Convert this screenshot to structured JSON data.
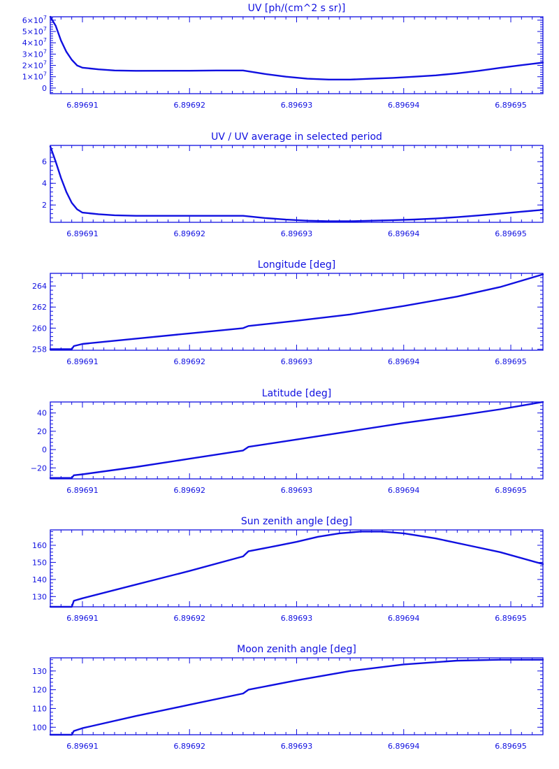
{
  "colors": {
    "line": "#1010e0",
    "background": "#ffffff"
  },
  "chart_data": [
    {
      "type": "line",
      "title": "UV [ph/(cm^2 s sr)]",
      "xlim": [
        6.896907,
        6.896953
      ],
      "ylim": [
        -5000000,
        63000000
      ],
      "x_ticks": [
        6.89691,
        6.89692,
        6.89693,
        6.89694,
        6.89695
      ],
      "x_tick_labels": [
        "6.89691",
        "6.89692",
        "6.89693",
        "6.89694",
        "6.89695"
      ],
      "y_ticks": [
        0,
        10000000,
        20000000,
        30000000,
        40000000,
        50000000,
        60000000
      ],
      "y_tick_labels": [
        {
          "base": "0",
          "exp": ""
        },
        {
          "base": "1×10",
          "exp": "7"
        },
        {
          "base": "2×10",
          "exp": "7"
        },
        {
          "base": "3×10",
          "exp": "7"
        },
        {
          "base": "4×10",
          "exp": "7"
        },
        {
          "base": "5×10",
          "exp": "7"
        },
        {
          "base": "6×10",
          "exp": "7"
        }
      ],
      "series": [
        {
          "x": [
            6.896907,
            6.8969075,
            6.896908,
            6.8969085,
            6.896909,
            6.8969095,
            6.89691,
            6.8969115,
            6.896913,
            6.896915,
            6.89692,
            6.8969225,
            6.896925,
            6.896927,
            6.896929,
            6.896931,
            6.896933,
            6.896935,
            6.896937,
            6.896939,
            6.896941,
            6.896943,
            6.896945,
            6.896947,
            6.896949,
            6.896951,
            6.896953
          ],
          "y": [
            63000000,
            55000000,
            42000000,
            32000000,
            25000000,
            20000000,
            18000000,
            16500000,
            15500000,
            15200000,
            15300000,
            15500000,
            15500000,
            12500000,
            10000000,
            8200000,
            7500000,
            7500000,
            8200000,
            9000000,
            10000000,
            11200000,
            13000000,
            15200000,
            17800000,
            20200000,
            22500000
          ]
        }
      ]
    },
    {
      "type": "line",
      "title": "UV / UV average in selected period",
      "xlim": [
        6.896907,
        6.896953
      ],
      "ylim": [
        0.4,
        7.5
      ],
      "x_ticks": [
        6.89691,
        6.89692,
        6.89693,
        6.89694,
        6.89695
      ],
      "x_tick_labels": [
        "6.89691",
        "6.89692",
        "6.89693",
        "6.89694",
        "6.89695"
      ],
      "y_ticks": [
        2,
        4,
        6
      ],
      "y_tick_labels": [
        {
          "base": "2",
          "exp": ""
        },
        {
          "base": "4",
          "exp": ""
        },
        {
          "base": "6",
          "exp": ""
        }
      ],
      "series": [
        {
          "x": [
            6.896907,
            6.8969075,
            6.896908,
            6.8969085,
            6.896909,
            6.8969095,
            6.89691,
            6.8969115,
            6.896913,
            6.896915,
            6.89692,
            6.8969225,
            6.896925,
            6.896927,
            6.896929,
            6.896931,
            6.896933,
            6.896935,
            6.896937,
            6.896939,
            6.896941,
            6.896943,
            6.896945,
            6.896947,
            6.896949,
            6.896951,
            6.896953
          ],
          "y": [
            7.4,
            6.0,
            4.5,
            3.2,
            2.2,
            1.6,
            1.3,
            1.15,
            1.05,
            1.0,
            1.0,
            1.0,
            1.0,
            0.8,
            0.65,
            0.55,
            0.5,
            0.5,
            0.55,
            0.6,
            0.66,
            0.75,
            0.88,
            1.03,
            1.2,
            1.38,
            1.55
          ]
        }
      ]
    },
    {
      "type": "line",
      "title": "Longitude [deg]",
      "xlim": [
        6.896907,
        6.896953
      ],
      "ylim": [
        257.9,
        265.2
      ],
      "x_ticks": [
        6.89691,
        6.89692,
        6.89693,
        6.89694,
        6.89695
      ],
      "x_tick_labels": [
        "6.89691",
        "6.89692",
        "6.89693",
        "6.89694",
        "6.89695"
      ],
      "y_ticks": [
        258,
        260,
        262,
        264
      ],
      "y_tick_labels": [
        {
          "base": "258",
          "exp": ""
        },
        {
          "base": "260",
          "exp": ""
        },
        {
          "base": "262",
          "exp": ""
        },
        {
          "base": "264",
          "exp": ""
        }
      ],
      "series": [
        {
          "x": [
            6.896907,
            6.896909,
            6.8969092,
            6.89691,
            6.896912,
            6.896915,
            6.89692,
            6.896925,
            6.8969255,
            6.89693,
            6.896935,
            6.89694,
            6.896945,
            6.896949,
            6.896953
          ],
          "y": [
            258.0,
            258.0,
            258.3,
            258.5,
            258.7,
            259.0,
            259.5,
            260.0,
            260.2,
            260.7,
            261.3,
            262.1,
            263.0,
            263.9,
            265.1
          ]
        }
      ]
    },
    {
      "type": "line",
      "title": "Latitude [deg]",
      "xlim": [
        6.896907,
        6.896953
      ],
      "ylim": [
        -32,
        52
      ],
      "x_ticks": [
        6.89691,
        6.89692,
        6.89693,
        6.89694,
        6.89695
      ],
      "x_tick_labels": [
        "6.89691",
        "6.89692",
        "6.89693",
        "6.89694",
        "6.89695"
      ],
      "y_ticks": [
        -20,
        0,
        20,
        40
      ],
      "y_tick_labels": [
        {
          "base": "−20",
          "exp": ""
        },
        {
          "base": "0",
          "exp": ""
        },
        {
          "base": "20",
          "exp": ""
        },
        {
          "base": "40",
          "exp": ""
        }
      ],
      "series": [
        {
          "x": [
            6.896907,
            6.896909,
            6.8969092,
            6.89691,
            6.896915,
            6.89692,
            6.896925,
            6.8969255,
            6.89693,
            6.896935,
            6.89694,
            6.896945,
            6.896949,
            6.896953
          ],
          "y": [
            -31,
            -31,
            -28,
            -27,
            -19,
            -10,
            -1,
            3,
            11,
            20,
            29,
            37,
            44,
            52
          ]
        }
      ]
    },
    {
      "type": "line",
      "title": "Sun zenith angle [deg]",
      "xlim": [
        6.896907,
        6.896953
      ],
      "ylim": [
        124,
        169
      ],
      "x_ticks": [
        6.89691,
        6.89692,
        6.89693,
        6.89694,
        6.89695
      ],
      "x_tick_labels": [
        "6.89691",
        "6.89692",
        "6.89693",
        "6.89694",
        "6.89695"
      ],
      "y_ticks": [
        130,
        140,
        150,
        160
      ],
      "y_tick_labels": [
        {
          "base": "130",
          "exp": ""
        },
        {
          "base": "140",
          "exp": ""
        },
        {
          "base": "150",
          "exp": ""
        },
        {
          "base": "160",
          "exp": ""
        }
      ],
      "series": [
        {
          "x": [
            6.896907,
            6.896909,
            6.8969092,
            6.89691,
            6.896915,
            6.89692,
            6.896925,
            6.8969255,
            6.896928,
            6.89693,
            6.896932,
            6.896934,
            6.896936,
            6.896938,
            6.89694,
            6.896943,
            6.896946,
            6.896949,
            6.896953
          ],
          "y": [
            124,
            124,
            127.5,
            129,
            137,
            145,
            153.5,
            156.5,
            159.5,
            162,
            165,
            167,
            168,
            168,
            167,
            164,
            160,
            156,
            149
          ]
        }
      ]
    },
    {
      "type": "line",
      "title": "Moon zenith angle [deg]",
      "xlim": [
        6.896907,
        6.896953
      ],
      "ylim": [
        96,
        137
      ],
      "x_ticks": [
        6.89691,
        6.89692,
        6.89693,
        6.89694,
        6.89695
      ],
      "x_tick_labels": [
        "6.89691",
        "6.89692",
        "6.89693",
        "6.89694",
        "6.89695"
      ],
      "y_ticks": [
        100,
        110,
        120,
        130
      ],
      "y_tick_labels": [
        {
          "base": "100",
          "exp": ""
        },
        {
          "base": "110",
          "exp": ""
        },
        {
          "base": "120",
          "exp": ""
        },
        {
          "base": "130",
          "exp": ""
        }
      ],
      "series": [
        {
          "x": [
            6.896907,
            6.896909,
            6.8969092,
            6.89691,
            6.896915,
            6.89692,
            6.896925,
            6.8969255,
            6.89693,
            6.896935,
            6.89694,
            6.896945,
            6.896949,
            6.896953
          ],
          "y": [
            96,
            96,
            98,
            99.5,
            106,
            112,
            118,
            120,
            125,
            130,
            133.5,
            135.5,
            136,
            136
          ]
        }
      ]
    }
  ]
}
